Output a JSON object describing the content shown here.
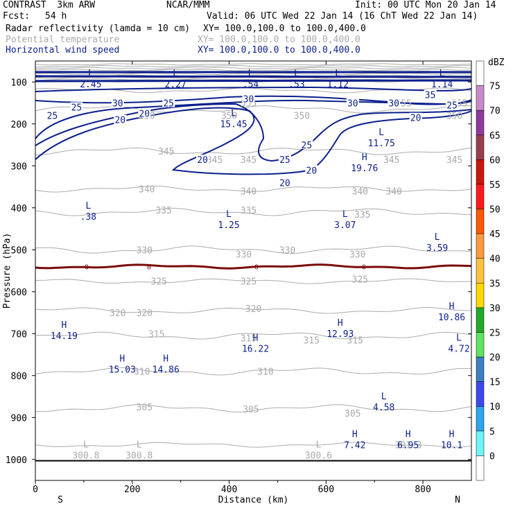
{
  "header": {
    "title_left": "CONTRAST  3km ARW",
    "center": "NCAR/MMM",
    "init": "Init: 00 UTC Mon 20 Jan 14",
    "fcst_label": "Fcst:",
    "fcst_value": "54 h",
    "valid": "Valid: 06 UTC Wed 22 Jan 14 (16 ChT Wed 22 Jan 14)",
    "fields": [
      {
        "name": "Radar reflectivity (lamda = 10 cm)",
        "xy": "XY= 100.0,100.0 to 100.0,400.0"
      },
      {
        "name": "Potential temperature",
        "xy": "XY= 100.0,100.0 to 100.0,400.0"
      },
      {
        "name": "Horizontal wind speed",
        "xy": "XY= 100.0,100.0 to 100.0,400.0"
      }
    ]
  },
  "colors": {
    "wind": "#0b1f8c",
    "theta": "#aaaaaa",
    "freezing": "#7a0a0a",
    "ground": "#000000"
  },
  "chart_data": {
    "type": "cross-section",
    "xlabel": "Distance (km)",
    "ylabel": "Pressure (hPa)",
    "xlim": [
      0,
      900
    ],
    "ylim": [
      1050,
      50
    ],
    "x_ticks": [
      0,
      200,
      400,
      600,
      800
    ],
    "y_ticks": [
      100,
      200,
      300,
      400,
      500,
      600,
      700,
      800,
      900,
      1000
    ],
    "x_ends": {
      "left": "S",
      "right": "N"
    },
    "colorbar": {
      "unit": "dBZ",
      "levels": [
        75,
        70,
        65,
        60,
        55,
        50,
        45,
        40,
        35,
        30,
        25,
        20,
        15,
        10,
        5,
        0
      ],
      "colors": [
        "#ffffff",
        "#c98ac9",
        "#8e3a9c",
        "#9c3d4d",
        "#c8160e",
        "#ff1a1a",
        "#ff5a00",
        "#ff9a3c",
        "#ffc23a",
        "#ffd900",
        "#1faa28",
        "#5ee35e",
        "#3b7fc1",
        "#3f47ee",
        "#2ea7ee",
        "#6ff5f5",
        "#ffffff"
      ]
    },
    "wind_contours": [
      {
        "level": 20,
        "label": "20"
      },
      {
        "level": 25,
        "label": "25"
      },
      {
        "level": 30,
        "label": "30"
      },
      {
        "level": 35,
        "label": "35"
      }
    ],
    "theta_contours": [
      {
        "level": 300.8
      },
      {
        "level": 305
      },
      {
        "level": 310
      },
      {
        "level": 315
      },
      {
        "level": 320
      },
      {
        "level": 325
      },
      {
        "level": 330
      },
      {
        "level": 335
      },
      {
        "level": 340
      },
      {
        "level": 345
      },
      {
        "level": 350
      },
      {
        "level": 355
      }
    ],
    "freezing_level": {
      "label": "0",
      "pressure": 540
    },
    "extrema": [
      {
        "type": "L",
        "value": "2.45",
        "x": 100,
        "p": 90,
        "field": "wind"
      },
      {
        "type": "L",
        "value": "2.27",
        "x": 275,
        "p": 90,
        "field": "wind"
      },
      {
        "type": "L",
        "value": ".54",
        "x": 430,
        "p": 90,
        "field": "wind"
      },
      {
        "type": "L",
        "value": ".53",
        "x": 525,
        "p": 90,
        "field": "wind"
      },
      {
        "type": "L",
        "value": "1.12",
        "x": 610,
        "p": 90,
        "field": "wind"
      },
      {
        "type": "L",
        "value": "1.14",
        "x": 825,
        "p": 90,
        "field": "wind"
      },
      {
        "type": "L",
        "value": "15.45",
        "x": 395,
        "p": 185,
        "field": "wind"
      },
      {
        "type": "L",
        "value": "11.75",
        "x": 700,
        "p": 230,
        "field": "wind"
      },
      {
        "type": "H",
        "value": "19.76",
        "x": 665,
        "p": 290,
        "field": "wind"
      },
      {
        "type": "L",
        "value": ".38",
        "x": 95,
        "p": 405,
        "field": "wind"
      },
      {
        "type": "L",
        "value": "1.25",
        "x": 385,
        "p": 425,
        "field": "wind"
      },
      {
        "type": "L",
        "value": "3.07",
        "x": 625,
        "p": 425,
        "field": "wind"
      },
      {
        "type": "L",
        "value": "3.59",
        "x": 815,
        "p": 480,
        "field": "wind"
      },
      {
        "type": "H",
        "value": "10.86",
        "x": 845,
        "p": 645,
        "field": "wind"
      },
      {
        "type": "H",
        "value": "14.19",
        "x": 45,
        "p": 690,
        "field": "wind"
      },
      {
        "type": "H",
        "value": "12.93",
        "x": 615,
        "p": 685,
        "field": "wind"
      },
      {
        "type": "H",
        "value": "16.22",
        "x": 440,
        "p": 720,
        "field": "wind"
      },
      {
        "type": "L",
        "value": "4.72",
        "x": 860,
        "p": 720,
        "field": "wind"
      },
      {
        "type": "H",
        "value": "15.03",
        "x": 165,
        "p": 770,
        "field": "wind"
      },
      {
        "type": "H",
        "value": "14.86",
        "x": 255,
        "p": 770,
        "field": "wind"
      },
      {
        "type": "L",
        "value": "4.58",
        "x": 705,
        "p": 860,
        "field": "wind"
      },
      {
        "type": "H",
        "value": "7.42",
        "x": 645,
        "p": 950,
        "field": "wind"
      },
      {
        "type": "H",
        "value": "6.95",
        "x": 755,
        "p": 950,
        "field": "wind"
      },
      {
        "type": "H",
        "value": "10.1",
        "x": 845,
        "p": 950,
        "field": "wind"
      },
      {
        "type": "L",
        "value": "300.8",
        "x": 90,
        "p": 975,
        "field": "theta"
      },
      {
        "type": "L",
        "value": "300.8",
        "x": 200,
        "p": 975,
        "field": "theta"
      },
      {
        "type": "L",
        "value": "300.6",
        "x": 570,
        "p": 975,
        "field": "theta"
      }
    ],
    "theta_labels": [
      {
        "text": "355",
        "x": 760,
        "p": 150
      },
      {
        "text": "355",
        "x": 875,
        "p": 150
      },
      {
        "text": "355",
        "x": 440,
        "p": 150
      },
      {
        "text": "350",
        "x": 230,
        "p": 180
      },
      {
        "text": "350",
        "x": 400,
        "p": 180
      },
      {
        "text": "350",
        "x": 550,
        "p": 180
      },
      {
        "text": "350",
        "x": 865,
        "p": 180
      },
      {
        "text": "345",
        "x": 270,
        "p": 265
      },
      {
        "text": "345",
        "x": 370,
        "p": 285
      },
      {
        "text": "345",
        "x": 440,
        "p": 285
      },
      {
        "text": "345",
        "x": 735,
        "p": 285
      },
      {
        "text": "345",
        "x": 865,
        "p": 285
      },
      {
        "text": "340",
        "x": 230,
        "p": 355
      },
      {
        "text": "340",
        "x": 440,
        "p": 360
      },
      {
        "text": "340",
        "x": 670,
        "p": 360
      },
      {
        "text": "340",
        "x": 740,
        "p": 360
      },
      {
        "text": "335",
        "x": 265,
        "p": 405
      },
      {
        "text": "335",
        "x": 440,
        "p": 405
      },
      {
        "text": "335",
        "x": 675,
        "p": 415
      },
      {
        "text": "330",
        "x": 225,
        "p": 500
      },
      {
        "text": "330",
        "x": 430,
        "p": 510
      },
      {
        "text": "330",
        "x": 520,
        "p": 500
      },
      {
        "text": "330",
        "x": 665,
        "p": 510
      },
      {
        "text": "325",
        "x": 255,
        "p": 575
      },
      {
        "text": "325",
        "x": 440,
        "p": 575
      },
      {
        "text": "325",
        "x": 670,
        "p": 570
      },
      {
        "text": "320",
        "x": 170,
        "p": 650
      },
      {
        "text": "320",
        "x": 225,
        "p": 650
      },
      {
        "text": "320",
        "x": 450,
        "p": 640
      },
      {
        "text": "315",
        "x": 250,
        "p": 700
      },
      {
        "text": "315",
        "x": 440,
        "p": 710
      },
      {
        "text": "315",
        "x": 570,
        "p": 715
      },
      {
        "text": "315",
        "x": 660,
        "p": 715
      },
      {
        "text": "310",
        "x": 220,
        "p": 790
      },
      {
        "text": "310",
        "x": 475,
        "p": 790
      },
      {
        "text": "305",
        "x": 225,
        "p": 875
      },
      {
        "text": "305",
        "x": 445,
        "p": 880
      },
      {
        "text": "305",
        "x": 655,
        "p": 890
      },
      {
        "text": "301.3",
        "x": 770,
        "p": 965
      }
    ],
    "wind_labels": [
      {
        "text": "25",
        "x": 35,
        "p": 180
      },
      {
        "text": "25",
        "x": 85,
        "p": 160
      },
      {
        "text": "30",
        "x": 170,
        "p": 150
      },
      {
        "text": "25",
        "x": 275,
        "p": 150
      },
      {
        "text": "20",
        "x": 175,
        "p": 190
      },
      {
        "text": "20",
        "x": 225,
        "p": 175
      },
      {
        "text": "30",
        "x": 440,
        "p": 140
      },
      {
        "text": "30",
        "x": 655,
        "p": 150
      },
      {
        "text": "30",
        "x": 740,
        "p": 150
      },
      {
        "text": "35",
        "x": 815,
        "p": 130
      },
      {
        "text": "25",
        "x": 860,
        "p": 155
      },
      {
        "text": "20",
        "x": 785,
        "p": 185
      },
      {
        "text": "20",
        "x": 345,
        "p": 285
      },
      {
        "text": "25",
        "x": 515,
        "p": 285
      },
      {
        "text": "25",
        "x": 560,
        "p": 250
      },
      {
        "text": "20",
        "x": 570,
        "p": 310
      },
      {
        "text": "20",
        "x": 515,
        "p": 340
      }
    ]
  }
}
